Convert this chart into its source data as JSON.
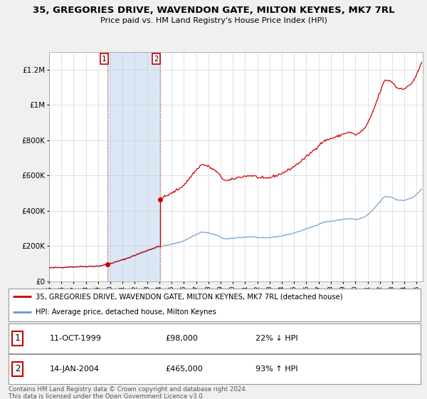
{
  "title": "35, GREGORIES DRIVE, WAVENDON GATE, MILTON KEYNES, MK7 7RL",
  "subtitle": "Price paid vs. HM Land Registry's House Price Index (HPI)",
  "sale1_date": "11-OCT-1999",
  "sale1_price": 98000,
  "sale1_hpi_diff": "22% ↓ HPI",
  "sale2_date": "14-JAN-2004",
  "sale2_price": 465000,
  "sale2_hpi_diff": "93% ↑ HPI",
  "legend_label_red": "35, GREGORIES DRIVE, WAVENDON GATE, MILTON KEYNES, MK7 7RL (detached house)",
  "legend_label_blue": "HPI: Average price, detached house, Milton Keynes",
  "footer": "Contains HM Land Registry data © Crown copyright and database right 2024.\nThis data is licensed under the Open Government Licence v3.0.",
  "red_color": "#cc0000",
  "blue_color": "#6699cc",
  "shaded_color": "#ccddf0",
  "background_color": "#f0f0f0",
  "plot_bg_color": "#ffffff",
  "ylim": [
    0,
    1300000
  ],
  "xlim_start": 1995.0,
  "xlim_end": 2025.5,
  "sale1_year": 1999.792,
  "sale2_year": 2004.042
}
